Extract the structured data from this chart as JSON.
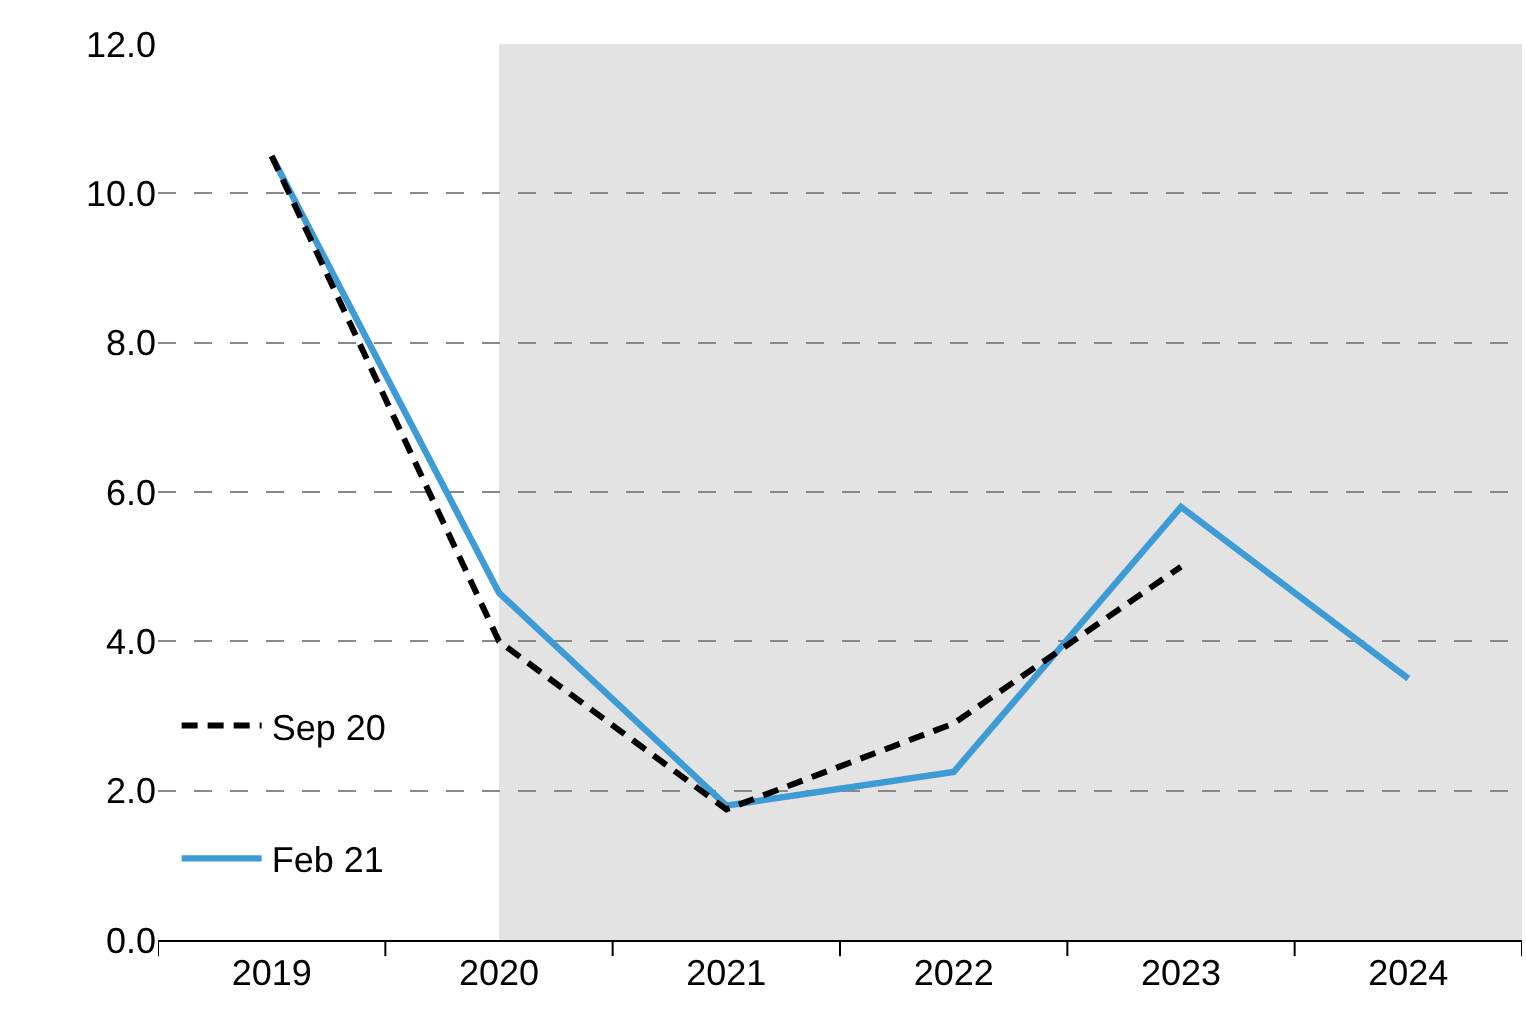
{
  "chart_data": {
    "type": "line",
    "categories": [
      "2019",
      "2020",
      "2021",
      "2022",
      "2023",
      "2024"
    ],
    "series": [
      {
        "name": "Sep 20",
        "color": "#000000",
        "line_style": "dashed",
        "values": [
          10.5,
          4.0,
          1.75,
          2.9,
          5.0,
          null
        ]
      },
      {
        "name": "Feb 21",
        "color": "#3d9bd5",
        "line_style": "solid",
        "values": [
          10.5,
          4.65,
          1.8,
          2.25,
          5.8,
          3.5
        ]
      }
    ],
    "ylim": [
      0,
      12
    ],
    "yticks": [
      {
        "value": 0,
        "label": "0.0"
      },
      {
        "value": 2,
        "label": "2.0"
      },
      {
        "value": 4,
        "label": "4.0"
      },
      {
        "value": 6,
        "label": "6.0"
      },
      {
        "value": 8,
        "label": "8.0"
      },
      {
        "value": 10,
        "label": "10.0"
      },
      {
        "value": 12,
        "label": "12.0"
      }
    ],
    "bands": [
      {
        "axis": "x",
        "from": "2020",
        "to": "2024",
        "color": "#e3e3e3"
      }
    ],
    "grid": "y",
    "legend": "bottom left",
    "marker": "none"
  }
}
